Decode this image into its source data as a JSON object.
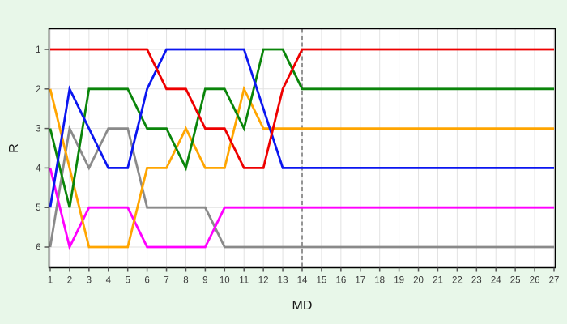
{
  "chart_data": {
    "type": "line",
    "title": "",
    "xlabel": "MD",
    "ylabel": "R",
    "x": [
      1,
      2,
      3,
      4,
      5,
      6,
      7,
      8,
      9,
      10,
      11,
      12,
      13,
      14,
      15,
      16,
      17,
      18,
      19,
      20,
      21,
      22,
      23,
      24,
      25,
      26,
      27
    ],
    "x_tick_labels": [
      "1",
      "2",
      "3",
      "4",
      "5",
      "6",
      "7",
      "8",
      "9",
      "10",
      "11",
      "12",
      "13",
      "14",
      "15",
      "16",
      "17",
      "18",
      "19",
      "20",
      "21",
      "22",
      "23",
      "24",
      "25",
      "26",
      "27"
    ],
    "y_ticks": [
      1,
      2,
      3,
      4,
      5,
      6
    ],
    "y_tick_labels": [
      "1",
      "2",
      "3",
      "4",
      "5",
      "6"
    ],
    "xlim": [
      1,
      27
    ],
    "ylim": [
      1,
      6
    ],
    "y_axis_inverted": true,
    "grid": true,
    "legend_position": "none",
    "vline_x": 14,
    "series": [
      {
        "name": "gray",
        "color": "#8a8a8a",
        "values": [
          6,
          3,
          4,
          3,
          3,
          5,
          5,
          5,
          5,
          6,
          6,
          6,
          6,
          6,
          6,
          6,
          6,
          6,
          6,
          6,
          6,
          6,
          6,
          6,
          6,
          6,
          6
        ]
      },
      {
        "name": "magenta",
        "color": "#ff00ff",
        "values": [
          4,
          6,
          5,
          5,
          5,
          6,
          6,
          6,
          6,
          5,
          5,
          5,
          5,
          5,
          5,
          5,
          5,
          5,
          5,
          5,
          5,
          5,
          5,
          5,
          5,
          5,
          5
        ]
      },
      {
        "name": "orange",
        "color": "#ffa500",
        "values": [
          2,
          4,
          6,
          6,
          6,
          4,
          4,
          3,
          4,
          4,
          2,
          3,
          3,
          3,
          3,
          3,
          3,
          3,
          3,
          3,
          3,
          3,
          3,
          3,
          3,
          3,
          3
        ]
      },
      {
        "name": "green",
        "color": "#0a850a",
        "values": [
          3,
          5,
          2,
          2,
          2,
          3,
          3,
          4,
          2,
          2,
          3,
          1,
          1,
          2,
          2,
          2,
          2,
          2,
          2,
          2,
          2,
          2,
          2,
          2,
          2,
          2,
          2
        ]
      },
      {
        "name": "blue",
        "color": "#0b16f0",
        "values": [
          5,
          2,
          3,
          4,
          4,
          2,
          1,
          1,
          1,
          1,
          1,
          2.5,
          4,
          4,
          4,
          4,
          4,
          4,
          4,
          4,
          4,
          4,
          4,
          4,
          4,
          4,
          4
        ]
      },
      {
        "name": "red",
        "color": "#ee0000",
        "values": [
          1,
          1,
          1,
          1,
          1,
          1,
          2,
          2,
          3,
          3,
          4,
          4,
          2,
          1,
          1,
          1,
          1,
          1,
          1,
          1,
          1,
          1,
          1,
          1,
          1,
          1,
          1
        ]
      }
    ]
  },
  "styles": {
    "page_background": "#e8f7e9",
    "plot_background": "#ffffff",
    "grid_color": "#e2e2e2",
    "frame_color": "#000000",
    "dashed_line_color": "#707070",
    "tick_color": "#555555",
    "tick_label_color": "#3a3a3a"
  }
}
